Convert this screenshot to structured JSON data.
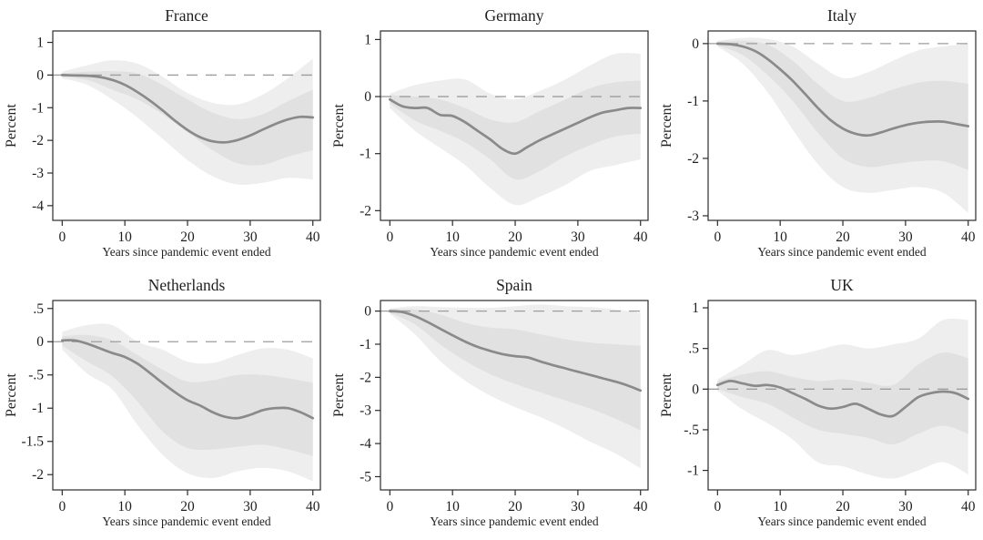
{
  "figure": {
    "shared_xlabel": "Years since pandemic event ended",
    "shared_ylabel": "Percent"
  },
  "style": {
    "outer_band_color": "#eeeeee",
    "inner_band_color": "#e1e1e1",
    "mean_line_color": "#8a8a8a",
    "zero_line_color": "#9d9d9d",
    "box_color": "#2b2b2b",
    "text_color": "#1f1f1f"
  },
  "chart_data": [
    {
      "type": "line",
      "title": "France",
      "xlabel": "Years since pandemic event ended",
      "ylabel": "Percent",
      "xlim": [
        -1.5,
        41.2
      ],
      "ylim": [
        -4.45,
        1.35
      ],
      "xticks": [
        0,
        10,
        20,
        30,
        40
      ],
      "ytick_vals": [
        1,
        0,
        -1,
        -2,
        -3,
        -4
      ],
      "ytick_text": [
        "1",
        "0",
        "-1",
        "-2",
        "-3",
        "-4"
      ],
      "zero_line": 0,
      "x_start": 0,
      "x_step": 2,
      "mean": [
        0,
        -0.01,
        -0.02,
        -0.06,
        -0.15,
        -0.3,
        -0.52,
        -0.78,
        -1.08,
        -1.4,
        -1.68,
        -1.9,
        -2.03,
        -2.06,
        -1.99,
        -1.85,
        -1.67,
        -1.5,
        -1.36,
        -1.28,
        -1.3
      ],
      "band_x": [
        0,
        4,
        8,
        12,
        16,
        20,
        24,
        28,
        32,
        36,
        40
      ],
      "inner_hi": [
        0.05,
        0.1,
        0.12,
        0.05,
        -0.3,
        -0.75,
        -1.15,
        -1.35,
        -1.2,
        -0.8,
        -0.45
      ],
      "inner_lo": [
        -0.05,
        -0.15,
        -0.45,
        -0.75,
        -1.2,
        -1.75,
        -2.3,
        -2.7,
        -2.75,
        -2.5,
        -2.3
      ],
      "outer_hi": [
        0.1,
        0.3,
        0.45,
        0.35,
        -0.05,
        -0.55,
        -0.85,
        -0.9,
        -0.6,
        -0.1,
        0.5
      ],
      "outer_lo": [
        -0.1,
        -0.3,
        -0.75,
        -1.3,
        -1.95,
        -2.6,
        -3.1,
        -3.35,
        -3.3,
        -3.15,
        -3.2
      ]
    },
    {
      "type": "line",
      "title": "Germany",
      "xlabel": "Years since pandemic event ended",
      "ylabel": "Percent",
      "xlim": [
        -1.5,
        41.2
      ],
      "ylim": [
        -2.17,
        1.15
      ],
      "xticks": [
        0,
        10,
        20,
        30,
        40
      ],
      "ytick_vals": [
        1,
        0,
        -1,
        -2
      ],
      "ytick_text": [
        "1",
        "0",
        "-1",
        "-2"
      ],
      "zero_line": 0,
      "x_start": 0,
      "x_step": 2,
      "mean": [
        -0.05,
        -0.17,
        -0.2,
        -0.2,
        -0.32,
        -0.34,
        -0.45,
        -0.6,
        -0.75,
        -0.92,
        -1.0,
        -0.88,
        -0.76,
        -0.66,
        -0.56,
        -0.46,
        -0.36,
        -0.28,
        -0.24,
        -0.2,
        -0.2
      ],
      "band_x": [
        0,
        4,
        8,
        12,
        16,
        20,
        24,
        28,
        32,
        36,
        40
      ],
      "inner_hi": [
        0.02,
        0.0,
        -0.05,
        -0.2,
        -0.4,
        -0.45,
        -0.25,
        -0.05,
        0.15,
        0.25,
        0.28
      ],
      "inner_lo": [
        -0.12,
        -0.42,
        -0.6,
        -0.8,
        -1.1,
        -1.45,
        -1.3,
        -1.05,
        -0.85,
        -0.7,
        -0.65
      ],
      "outer_hi": [
        0.05,
        0.2,
        0.28,
        0.3,
        0.05,
        -0.05,
        0.1,
        0.3,
        0.55,
        0.75,
        0.75
      ],
      "outer_lo": [
        -0.2,
        -0.6,
        -0.9,
        -1.2,
        -1.6,
        -1.9,
        -1.75,
        -1.55,
        -1.3,
        -1.2,
        -1.1
      ]
    },
    {
      "type": "line",
      "title": "Italy",
      "xlabel": "Years since pandemic event ended",
      "ylabel": "Percent",
      "xlim": [
        -1.5,
        41.2
      ],
      "ylim": [
        -3.08,
        0.22
      ],
      "xticks": [
        0,
        10,
        20,
        30,
        40
      ],
      "ytick_vals": [
        0,
        -1,
        -2,
        -3
      ],
      "ytick_text": [
        "0",
        "-1",
        "-2",
        "-3"
      ],
      "zero_line": 0,
      "x_start": 0,
      "x_step": 2,
      "mean": [
        0,
        -0.01,
        -0.05,
        -0.13,
        -0.27,
        -0.45,
        -0.65,
        -0.88,
        -1.12,
        -1.33,
        -1.48,
        -1.57,
        -1.6,
        -1.55,
        -1.48,
        -1.42,
        -1.38,
        -1.36,
        -1.36,
        -1.4,
        -1.44
      ],
      "band_x": [
        0,
        4,
        8,
        12,
        16,
        20,
        24,
        28,
        32,
        36,
        40
      ],
      "inner_hi": [
        0.03,
        0.05,
        -0.02,
        -0.3,
        -0.7,
        -1.0,
        -0.95,
        -0.8,
        -0.68,
        -0.65,
        -0.7
      ],
      "inner_lo": [
        -0.03,
        -0.2,
        -0.55,
        -1.0,
        -1.55,
        -2.0,
        -2.15,
        -2.1,
        -2.05,
        -2.05,
        -2.2
      ],
      "outer_hi": [
        0.05,
        0.1,
        0.08,
        -0.05,
        -0.35,
        -0.6,
        -0.5,
        -0.3,
        -0.12,
        -0.05,
        0.0
      ],
      "outer_lo": [
        -0.05,
        -0.35,
        -0.85,
        -1.5,
        -2.1,
        -2.5,
        -2.6,
        -2.55,
        -2.5,
        -2.6,
        -2.95
      ]
    },
    {
      "type": "line",
      "title": "Netherlands",
      "xlabel": "Years since pandemic event ended",
      "ylabel": "Percent",
      "xlim": [
        -1.5,
        41.2
      ],
      "ylim": [
        -2.23,
        0.62
      ],
      "xticks": [
        0,
        10,
        20,
        30,
        40
      ],
      "ytick_vals": [
        0.5,
        0,
        -0.5,
        -1,
        -1.5,
        -2
      ],
      "ytick_text": [
        ".5",
        "0",
        "-.5",
        "-1",
        "-1.5",
        "-2"
      ],
      "zero_line": 0,
      "x_start": 0,
      "x_step": 2,
      "mean": [
        0.02,
        0.02,
        -0.03,
        -0.1,
        -0.17,
        -0.23,
        -0.33,
        -0.47,
        -0.62,
        -0.76,
        -0.88,
        -0.96,
        -1.06,
        -1.13,
        -1.15,
        -1.1,
        -1.03,
        -1.0,
        -1.0,
        -1.06,
        -1.15
      ],
      "band_x": [
        0,
        4,
        8,
        12,
        16,
        20,
        24,
        28,
        32,
        36,
        40
      ],
      "inner_hi": [
        0.08,
        0.1,
        0.02,
        -0.2,
        -0.42,
        -0.6,
        -0.58,
        -0.5,
        -0.5,
        -0.55,
        -0.62
      ],
      "inner_lo": [
        -0.06,
        -0.3,
        -0.52,
        -0.9,
        -1.35,
        -1.6,
        -1.62,
        -1.58,
        -1.55,
        -1.62,
        -1.72
      ],
      "outer_hi": [
        0.15,
        0.25,
        0.25,
        0.0,
        -0.12,
        -0.3,
        -0.32,
        -0.2,
        -0.1,
        -0.12,
        -0.25
      ],
      "outer_lo": [
        -0.12,
        -0.48,
        -0.72,
        -1.25,
        -1.7,
        -1.98,
        -2.05,
        -1.95,
        -1.9,
        -1.95,
        -2.1
      ]
    },
    {
      "type": "line",
      "title": "Spain",
      "xlabel": "Years since pandemic event ended",
      "ylabel": "Percent",
      "xlim": [
        -1.5,
        41.2
      ],
      "ylim": [
        -5.4,
        0.32
      ],
      "xticks": [
        0,
        10,
        20,
        30,
        40
      ],
      "ytick_vals": [
        0,
        -1,
        -2,
        -3,
        -4,
        -5
      ],
      "ytick_text": [
        "0",
        "-1",
        "-2",
        "-3",
        "-4",
        "-5"
      ],
      "zero_line": 0,
      "x_start": 0,
      "x_step": 2,
      "mean": [
        0,
        -0.03,
        -0.15,
        -0.33,
        -0.53,
        -0.73,
        -0.92,
        -1.08,
        -1.2,
        -1.3,
        -1.36,
        -1.4,
        -1.52,
        -1.63,
        -1.73,
        -1.83,
        -1.93,
        -2.03,
        -2.13,
        -2.25,
        -2.4
      ],
      "band_x": [
        0,
        4,
        8,
        12,
        16,
        20,
        24,
        28,
        32,
        36,
        40
      ],
      "inner_hi": [
        0.05,
        0.05,
        -0.1,
        -0.35,
        -0.5,
        -0.55,
        -0.7,
        -0.85,
        -0.95,
        -1.0,
        -1.05
      ],
      "inner_lo": [
        -0.05,
        -0.4,
        -1.0,
        -1.5,
        -1.9,
        -2.2,
        -2.45,
        -2.7,
        -2.95,
        -3.25,
        -3.6
      ],
      "outer_hi": [
        0.08,
        0.15,
        0.12,
        0.1,
        0.1,
        0.15,
        0.2,
        0.15,
        0.12,
        0.05,
        -0.05
      ],
      "outer_lo": [
        -0.08,
        -0.7,
        -1.5,
        -2.1,
        -2.55,
        -2.9,
        -3.2,
        -3.55,
        -3.95,
        -4.3,
        -4.75
      ]
    },
    {
      "type": "line",
      "title": "UK",
      "xlabel": "Years since pandemic event ended",
      "ylabel": "Percent",
      "xlim": [
        -1.5,
        41.2
      ],
      "ylim": [
        -1.24,
        1.09
      ],
      "xticks": [
        0,
        10,
        20,
        30,
        40
      ],
      "ytick_vals": [
        1,
        0.5,
        0,
        -0.5,
        -1
      ],
      "ytick_text": [
        "1",
        ".5",
        "0",
        "-.5",
        "-1"
      ],
      "zero_line": 0,
      "x_start": 0,
      "x_step": 2,
      "mean": [
        0.05,
        0.1,
        0.07,
        0.04,
        0.05,
        0.02,
        -0.05,
        -0.12,
        -0.2,
        -0.24,
        -0.22,
        -0.18,
        -0.24,
        -0.31,
        -0.33,
        -0.22,
        -0.1,
        -0.05,
        -0.03,
        -0.05,
        -0.12
      ],
      "band_x": [
        0,
        4,
        8,
        12,
        16,
        20,
        24,
        28,
        32,
        36,
        40
      ],
      "inner_hi": [
        0.1,
        0.18,
        0.22,
        0.15,
        0.1,
        0.12,
        0.08,
        0.05,
        0.3,
        0.45,
        0.38
      ],
      "inner_lo": [
        0.0,
        -0.1,
        -0.18,
        -0.35,
        -0.5,
        -0.55,
        -0.6,
        -0.68,
        -0.55,
        -0.45,
        -0.55
      ],
      "outer_hi": [
        0.12,
        0.3,
        0.48,
        0.42,
        0.48,
        0.55,
        0.5,
        0.55,
        0.62,
        0.85,
        0.85
      ],
      "outer_lo": [
        -0.02,
        -0.25,
        -0.42,
        -0.62,
        -0.9,
        -0.95,
        -1.05,
        -1.1,
        -1.0,
        -0.9,
        -1.05
      ]
    }
  ]
}
